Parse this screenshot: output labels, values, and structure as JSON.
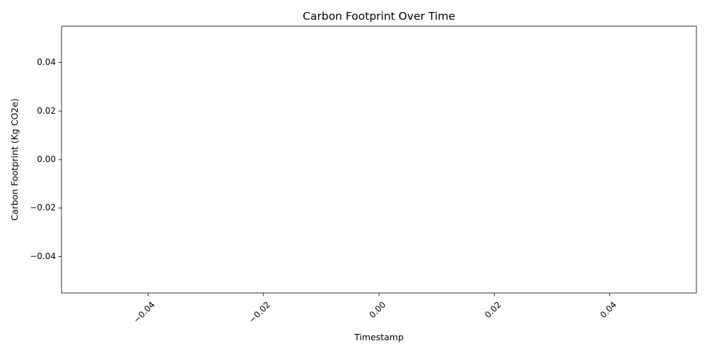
{
  "chart_data": {
    "type": "line",
    "title": "Carbon Footprint Over Time",
    "xlabel": "Timestamp",
    "ylabel": "Carbon Footprint (Kg CO2e)",
    "x": [],
    "series": [
      {
        "values": [],
        "color": "#1f77b4"
      }
    ],
    "xlim": [
      -0.055,
      0.055
    ],
    "ylim": [
      -0.055,
      0.055
    ],
    "xticks": [
      -0.04,
      -0.02,
      0.0,
      0.02,
      0.04
    ],
    "xtick_labels": [
      "−0.04",
      "−0.02",
      "0.00",
      "0.02",
      "0.04"
    ],
    "yticks": [
      0.04,
      0.02,
      0.0,
      -0.02,
      -0.04
    ],
    "ytick_labels": [
      "0.04",
      "0.02",
      "0.00",
      "−0.02",
      "−0.04"
    ],
    "xtick_rotation": 45,
    "grid": false,
    "legend": "none"
  }
}
